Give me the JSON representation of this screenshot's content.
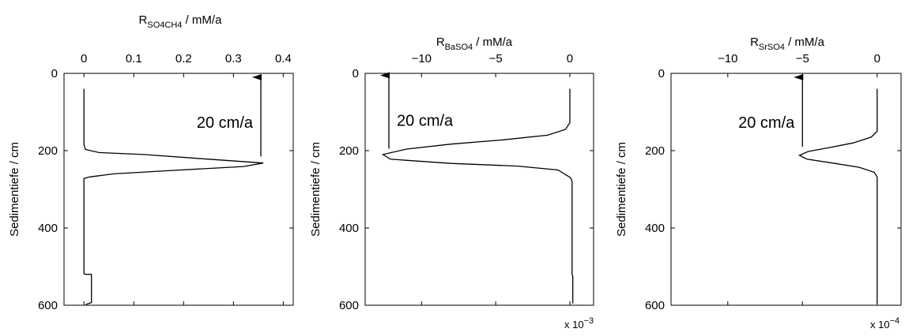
{
  "chart_data": [
    {
      "type": "line",
      "xlabel_main": "R",
      "xlabel_sub": "SO4CH4",
      "xlabel_unit": " / mM/a",
      "ylabel": "Sedimentiefe / cm",
      "xlim": [
        -0.04,
        0.42
      ],
      "ylim": [
        0,
        600
      ],
      "x_ticks": [
        0,
        0.1,
        0.2,
        0.3,
        0.4
      ],
      "x_tick_labels": [
        "0",
        "0.1",
        "0.2",
        "0.3",
        "0.4"
      ],
      "y_ticks": [
        0,
        200,
        400,
        600
      ],
      "y_tick_labels": [
        "0",
        "200",
        "400",
        "600"
      ],
      "x_axis_position": "top",
      "y_inverted": true,
      "multiplier": "",
      "multiplier_exp": "",
      "annotation": {
        "text": "20 cm/a",
        "arrow_x": 0.355,
        "arrow_y_from": 215,
        "arrow_y_to": 10
      },
      "series": [
        {
          "x": [
            0,
            0,
            0.003,
            0.03,
            0.12,
            0.25,
            0.36,
            0.32,
            0.18,
            0.06,
            0.012,
            0,
            0,
            0.003,
            0.015,
            0.015,
            0.004
          ],
          "y": [
            40,
            185,
            197,
            205,
            210,
            222,
            232,
            241,
            251,
            260,
            268,
            272,
            518,
            520,
            520,
            593,
            598
          ]
        }
      ]
    },
    {
      "type": "line",
      "xlabel_main": "R",
      "xlabel_sub": "BaSO4",
      "xlabel_unit": " / mM/a",
      "ylabel": "Sedimentiefe / cm",
      "xlim": [
        -13.8,
        1.6
      ],
      "ylim": [
        0,
        600
      ],
      "x_ticks": [
        -10,
        -5,
        0
      ],
      "x_tick_labels": [
        "−10",
        "−5",
        "0"
      ],
      "y_ticks": [
        0,
        200,
        400,
        600
      ],
      "y_tick_labels": [
        "0",
        "200",
        "400",
        "600"
      ],
      "x_axis_position": "top",
      "y_inverted": true,
      "multiplier": "x 10",
      "multiplier_exp": "−3",
      "annotation": {
        "text": "20 cm/a",
        "arrow_x": -12.2,
        "arrow_y_from": 195,
        "arrow_y_to": 5
      },
      "series": [
        {
          "x": [
            0,
            0,
            -0.3,
            -1.5,
            -4.5,
            -8,
            -11,
            -12.6,
            -12.1,
            -8,
            -3.5,
            -0.8,
            0.05,
            0.15,
            0.15,
            0.2,
            0.2
          ],
          "y": [
            40,
            128,
            145,
            160,
            172,
            183,
            196,
            210,
            222,
            233,
            240,
            250,
            270,
            280,
            520,
            525,
            595
          ]
        }
      ]
    },
    {
      "type": "line",
      "xlabel_main": "R",
      "xlabel_sub": "SrSO4",
      "xlabel_unit": " / mM/a",
      "ylabel": "Sedimentiefe / cm",
      "xlim": [
        -13.8,
        1.6
      ],
      "ylim": [
        0,
        600
      ],
      "x_ticks": [
        -10,
        -5,
        0
      ],
      "x_tick_labels": [
        "−10",
        "−5",
        "0"
      ],
      "y_ticks": [
        0,
        200,
        400,
        600
      ],
      "y_tick_labels": [
        "0",
        "200",
        "400",
        "600"
      ],
      "x_axis_position": "top",
      "y_inverted": true,
      "multiplier": "x 10",
      "multiplier_exp": "−4",
      "annotation": {
        "text": "20 cm/a",
        "arrow_x": -5,
        "arrow_y_from": 190,
        "arrow_y_to": 10
      },
      "series": [
        {
          "x": [
            0,
            0,
            -0.4,
            -1.6,
            -3.2,
            -4.6,
            -5.2,
            -4.7,
            -3.0,
            -1.2,
            -0.2,
            0,
            0,
            0
          ],
          "y": [
            40,
            150,
            165,
            180,
            192,
            202,
            212,
            222,
            232,
            243,
            256,
            268,
            520,
            595
          ]
        }
      ]
    }
  ]
}
